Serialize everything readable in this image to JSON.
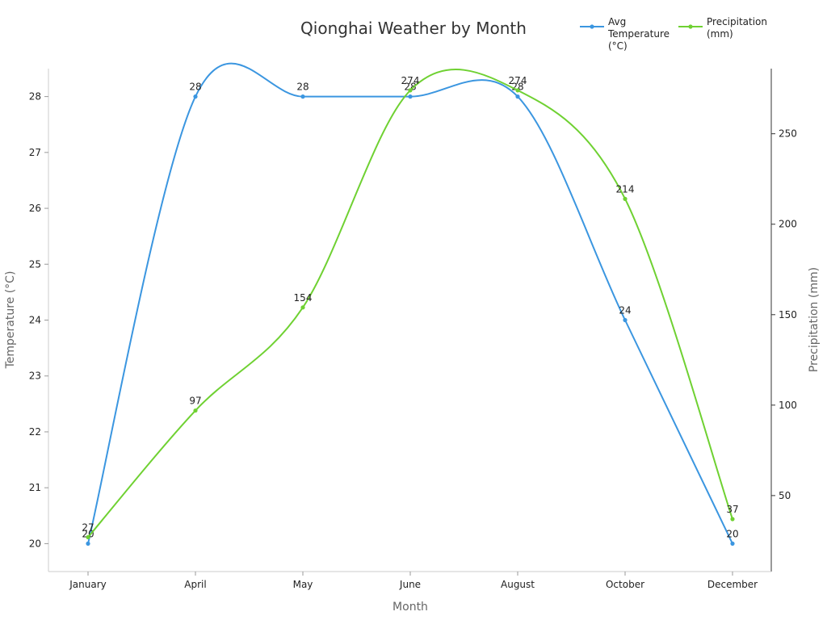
{
  "chart_data": {
    "type": "line",
    "title": "Qionghai Weather by Month",
    "xlabel": "Month",
    "ylabel_left": "Temperature (°C)",
    "ylabel_right": "Precipitation (mm)",
    "categories": [
      "January",
      "April",
      "May",
      "June",
      "August",
      "October",
      "December"
    ],
    "y_left": {
      "ylim": [
        19.5,
        28.5
      ],
      "ticks": [
        "20",
        "21",
        "22",
        "23",
        "24",
        "25",
        "26",
        "27",
        "28"
      ]
    },
    "y_right": {
      "ylim": [
        8,
        286
      ],
      "ticks": [
        "50",
        "100",
        "150",
        "200",
        "250"
      ]
    },
    "series": [
      {
        "name_lines": [
          "Avg",
          "Temperature",
          "(°C)"
        ],
        "axis": "left",
        "color": "#3b96e0",
        "values": [
          20,
          28,
          28,
          28,
          28,
          24,
          20
        ],
        "labels": [
          "20",
          "28",
          "28",
          "28",
          "28",
          "24",
          "20"
        ]
      },
      {
        "name_lines": [
          "Precipitation",
          "(mm)"
        ],
        "axis": "right",
        "color": "#6fd132",
        "values": [
          27,
          97,
          154,
          274,
          274,
          214,
          37
        ],
        "labels": [
          "27",
          "97",
          "154",
          "274",
          "274",
          "214",
          "37"
        ]
      }
    ],
    "legend_position": "top-right",
    "grid": false
  }
}
